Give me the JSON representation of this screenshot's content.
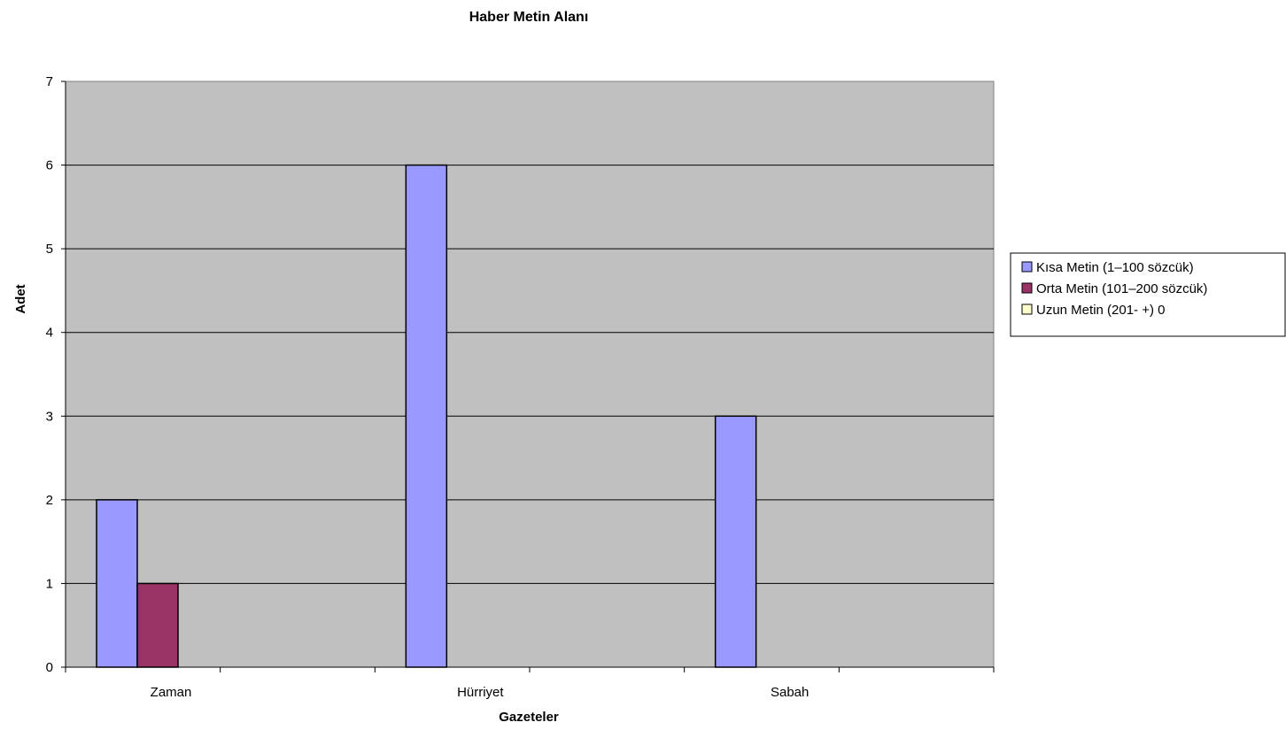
{
  "chart_data": {
    "type": "bar",
    "title": "Haber Metin Alanı",
    "xlabel": "Gazeteler",
    "ylabel": "Adet",
    "categories": [
      "Zaman",
      "Hürriyet",
      "Sabah"
    ],
    "series": [
      {
        "name": "Kısa Metin  (1–100 sözcük)",
        "values": [
          2,
          6,
          3
        ],
        "color": "#9999ff"
      },
      {
        "name": "Orta Metin (101–200 sözcük)",
        "values": [
          1,
          0,
          0
        ],
        "color": "#993366"
      },
      {
        "name": "Uzun Metin (201- +) 0",
        "values": [
          0,
          0,
          0
        ],
        "color": "#ffffcc"
      }
    ],
    "ylim": [
      0,
      7
    ],
    "yticks": [
      0,
      1,
      2,
      3,
      4,
      5,
      6,
      7
    ],
    "grid": true,
    "plot_background": "#c0c0c0",
    "legend_position": "right"
  }
}
